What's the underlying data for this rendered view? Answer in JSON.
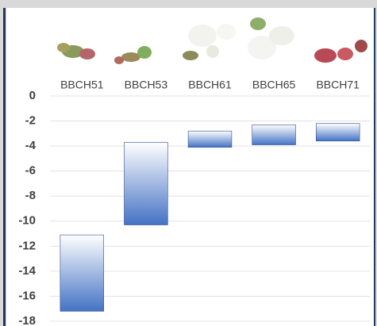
{
  "chart_data": {
    "type": "floating_bar",
    "categories": [
      "BBCH51",
      "BBCH53",
      "BBCH61",
      "BBCH65",
      "BBCH71"
    ],
    "high": [
      -11.1,
      -3.7,
      -2.8,
      -2.3,
      -2.2
    ],
    "low": [
      -17.2,
      -10.3,
      -4.1,
      -3.9,
      -3.6
    ],
    "color": "#4472c4",
    "ylim": [
      -18,
      0
    ],
    "yticks": [
      0,
      -2,
      -4,
      -6,
      -8,
      -10,
      -12,
      -14,
      -16,
      -18
    ],
    "grid": true
  }
}
